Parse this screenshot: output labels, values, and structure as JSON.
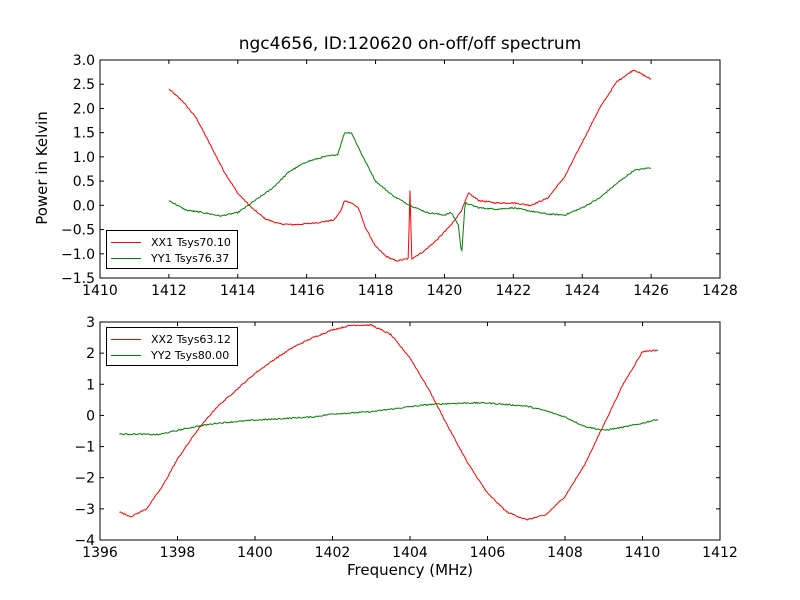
{
  "chart_data": [
    {
      "type": "line",
      "title": "ngc4656, ID:120620 on-off/off spectrum",
      "xlabel": "",
      "ylabel": "Power in Kelvin",
      "xlim": [
        1410,
        1428
      ],
      "ylim": [
        -1.5,
        3.0
      ],
      "xticks": [
        "1410",
        "1412",
        "1414",
        "1416",
        "1418",
        "1420",
        "1422",
        "1424",
        "1426",
        "1428"
      ],
      "yticks": [
        "−1.5",
        "−1.0",
        "−0.5",
        "0.0",
        "0.5",
        "1.0",
        "1.5",
        "2.0",
        "2.5",
        "3.0"
      ],
      "ytick_values": [
        -1.5,
        -1.0,
        -0.5,
        0.0,
        0.5,
        1.0,
        1.5,
        2.0,
        2.5,
        3.0
      ],
      "legend_position": "lower-left",
      "series": [
        {
          "name": "XX1 Tsys70.10",
          "color": "#ff0000",
          "points": [
            [
              1412.0,
              2.4
            ],
            [
              1412.4,
              2.15
            ],
            [
              1412.8,
              1.8
            ],
            [
              1413.2,
              1.25
            ],
            [
              1413.6,
              0.7
            ],
            [
              1414.0,
              0.25
            ],
            [
              1414.4,
              -0.05
            ],
            [
              1414.8,
              -0.28
            ],
            [
              1415.2,
              -0.38
            ],
            [
              1415.6,
              -0.4
            ],
            [
              1416.0,
              -0.38
            ],
            [
              1416.4,
              -0.35
            ],
            [
              1416.8,
              -0.3
            ],
            [
              1417.0,
              -0.1
            ],
            [
              1417.1,
              0.1
            ],
            [
              1417.3,
              0.05
            ],
            [
              1417.5,
              -0.05
            ],
            [
              1417.7,
              -0.45
            ],
            [
              1418.0,
              -0.85
            ],
            [
              1418.3,
              -1.05
            ],
            [
              1418.6,
              -1.15
            ],
            [
              1418.95,
              -1.1
            ],
            [
              1419.0,
              0.3
            ],
            [
              1419.05,
              -1.1
            ],
            [
              1419.4,
              -0.95
            ],
            [
              1419.8,
              -0.7
            ],
            [
              1420.2,
              -0.4
            ],
            [
              1420.5,
              -0.1
            ],
            [
              1420.7,
              0.25
            ],
            [
              1421.0,
              0.1
            ],
            [
              1421.5,
              0.05
            ],
            [
              1422.0,
              0.05
            ],
            [
              1422.5,
              0.0
            ],
            [
              1423.0,
              0.15
            ],
            [
              1423.5,
              0.6
            ],
            [
              1424.0,
              1.3
            ],
            [
              1424.5,
              2.0
            ],
            [
              1425.0,
              2.55
            ],
            [
              1425.5,
              2.8
            ],
            [
              1426.0,
              2.6
            ]
          ]
        },
        {
          "name": "YY1 Tsys76.37",
          "color": "#008000",
          "points": [
            [
              1412.0,
              0.1
            ],
            [
              1412.5,
              -0.1
            ],
            [
              1413.0,
              -0.15
            ],
            [
              1413.5,
              -0.22
            ],
            [
              1414.0,
              -0.15
            ],
            [
              1414.5,
              0.1
            ],
            [
              1415.0,
              0.35
            ],
            [
              1415.5,
              0.7
            ],
            [
              1416.0,
              0.9
            ],
            [
              1416.5,
              1.0
            ],
            [
              1416.9,
              1.05
            ],
            [
              1417.1,
              1.5
            ],
            [
              1417.3,
              1.5
            ],
            [
              1417.6,
              1.05
            ],
            [
              1418.0,
              0.5
            ],
            [
              1418.5,
              0.2
            ],
            [
              1419.0,
              0.0
            ],
            [
              1419.5,
              -0.15
            ],
            [
              1420.0,
              -0.2
            ],
            [
              1420.2,
              -0.15
            ],
            [
              1420.4,
              -0.4
            ],
            [
              1420.5,
              -1.0
            ],
            [
              1420.6,
              0.05
            ],
            [
              1421.0,
              -0.05
            ],
            [
              1421.5,
              -0.08
            ],
            [
              1422.0,
              -0.05
            ],
            [
              1422.5,
              -0.12
            ],
            [
              1423.0,
              -0.18
            ],
            [
              1423.5,
              -0.2
            ],
            [
              1424.0,
              -0.05
            ],
            [
              1424.5,
              0.15
            ],
            [
              1425.0,
              0.45
            ],
            [
              1425.5,
              0.72
            ],
            [
              1426.0,
              0.78
            ]
          ]
        }
      ]
    },
    {
      "type": "line",
      "title": "",
      "xlabel": "Frequency (MHz)",
      "ylabel": "",
      "xlim": [
        1396,
        1412
      ],
      "ylim": [
        -4,
        3
      ],
      "xticks": [
        "1396",
        "1398",
        "1400",
        "1402",
        "1404",
        "1406",
        "1408",
        "1410",
        "1412"
      ],
      "yticks": [
        "−4",
        "−3",
        "−2",
        "−1",
        "0",
        "1",
        "2",
        "3"
      ],
      "ytick_values": [
        -4,
        -3,
        -2,
        -1,
        0,
        1,
        2,
        3
      ],
      "legend_position": "upper-left",
      "series": [
        {
          "name": "XX2 Tsys63.12",
          "color": "#ff0000",
          "points": [
            [
              1396.5,
              -3.1
            ],
            [
              1396.8,
              -3.25
            ],
            [
              1397.2,
              -3.0
            ],
            [
              1397.6,
              -2.3
            ],
            [
              1398.0,
              -1.4
            ],
            [
              1398.5,
              -0.5
            ],
            [
              1399.0,
              0.25
            ],
            [
              1399.5,
              0.8
            ],
            [
              1400.0,
              1.35
            ],
            [
              1400.5,
              1.8
            ],
            [
              1401.0,
              2.2
            ],
            [
              1401.5,
              2.5
            ],
            [
              1402.0,
              2.75
            ],
            [
              1402.5,
              2.9
            ],
            [
              1403.0,
              2.9
            ],
            [
              1403.5,
              2.6
            ],
            [
              1404.0,
              1.85
            ],
            [
              1404.5,
              0.8
            ],
            [
              1405.0,
              -0.4
            ],
            [
              1405.5,
              -1.55
            ],
            [
              1406.0,
              -2.5
            ],
            [
              1406.5,
              -3.1
            ],
            [
              1407.0,
              -3.35
            ],
            [
              1407.5,
              -3.2
            ],
            [
              1408.0,
              -2.6
            ],
            [
              1408.5,
              -1.6
            ],
            [
              1409.0,
              -0.3
            ],
            [
              1409.5,
              1.0
            ],
            [
              1410.0,
              2.05
            ],
            [
              1410.4,
              2.1
            ]
          ]
        },
        {
          "name": "YY2 Tsys80.00",
          "color": "#008000",
          "points": [
            [
              1396.5,
              -0.6
            ],
            [
              1397.0,
              -0.6
            ],
            [
              1397.5,
              -0.62
            ],
            [
              1398.0,
              -0.48
            ],
            [
              1398.5,
              -0.35
            ],
            [
              1399.0,
              -0.25
            ],
            [
              1399.5,
              -0.2
            ],
            [
              1400.0,
              -0.15
            ],
            [
              1400.5,
              -0.12
            ],
            [
              1401.0,
              -0.08
            ],
            [
              1401.5,
              -0.05
            ],
            [
              1402.0,
              0.05
            ],
            [
              1402.5,
              0.08
            ],
            [
              1403.0,
              0.12
            ],
            [
              1403.5,
              0.2
            ],
            [
              1404.0,
              0.28
            ],
            [
              1404.5,
              0.35
            ],
            [
              1405.0,
              0.38
            ],
            [
              1405.5,
              0.4
            ],
            [
              1406.0,
              0.4
            ],
            [
              1406.5,
              0.35
            ],
            [
              1407.0,
              0.3
            ],
            [
              1407.5,
              0.15
            ],
            [
              1408.0,
              -0.05
            ],
            [
              1408.5,
              -0.35
            ],
            [
              1409.0,
              -0.48
            ],
            [
              1409.5,
              -0.38
            ],
            [
              1410.0,
              -0.25
            ],
            [
              1410.4,
              -0.12
            ]
          ]
        }
      ]
    }
  ]
}
